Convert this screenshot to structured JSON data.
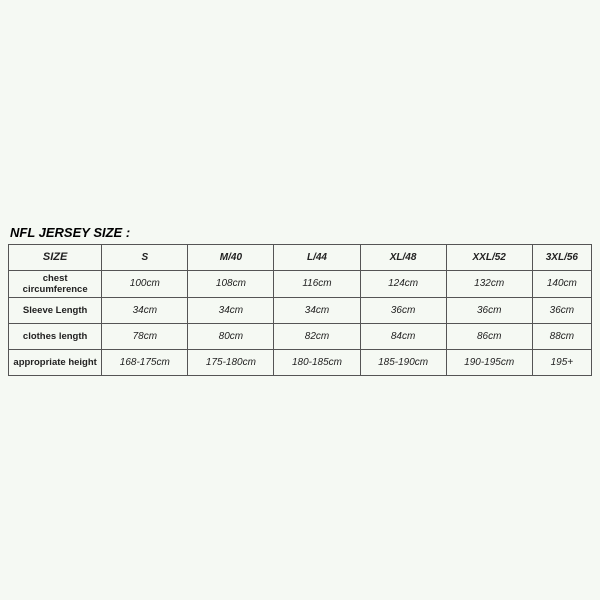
{
  "title": "NFL JERSEY SIZE :",
  "table": {
    "columns": [
      "SIZE",
      "S",
      "M/40",
      "L/44",
      "XL/48",
      "XXL/52",
      "3XL/56"
    ],
    "rows": [
      {
        "label": "chest circumference",
        "values": [
          "100cm",
          "108cm",
          "116cm",
          "124cm",
          "132cm",
          "140cm"
        ]
      },
      {
        "label": "Sleeve Length",
        "values": [
          "34cm",
          "34cm",
          "34cm",
          "36cm",
          "36cm",
          "36cm"
        ]
      },
      {
        "label": "clothes length",
        "values": [
          "78cm",
          "80cm",
          "82cm",
          "84cm",
          "86cm",
          "88cm"
        ]
      },
      {
        "label": "appropriate height",
        "values": [
          "168-175cm",
          "175-180cm",
          "180-185cm",
          "185-190cm",
          "190-195cm",
          "195+"
        ]
      }
    ]
  },
  "style": {
    "type": "table",
    "background_color": "#f5f9f3",
    "border_color": "#555555",
    "font_family": "Arial",
    "title_fontsize": 13,
    "header_fontsize": 11,
    "cell_fontsize": 10,
    "col_widths_pct": [
      16,
      14,
      14,
      14,
      14,
      14,
      14
    ]
  }
}
